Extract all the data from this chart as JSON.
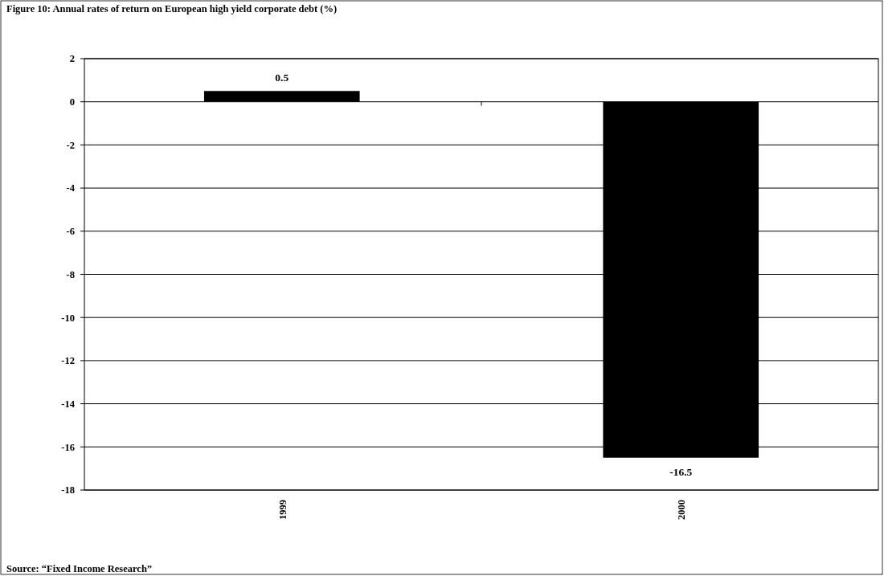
{
  "chart_data": {
    "type": "bar",
    "title": "Figure 10: Annual rates of return on European high yield corporate debt (%)",
    "categories": [
      "1999",
      "2000"
    ],
    "values": [
      0.5,
      -16.5
    ],
    "color": "#000000",
    "ylim": [
      -18,
      2
    ],
    "yticks": [
      -18,
      -16,
      -14,
      -12,
      -10,
      -8,
      -6,
      -4,
      -2,
      0,
      2
    ],
    "grid": "y",
    "data_labels": true,
    "annotations": [
      "Source: “Fixed Income Research”"
    ]
  }
}
